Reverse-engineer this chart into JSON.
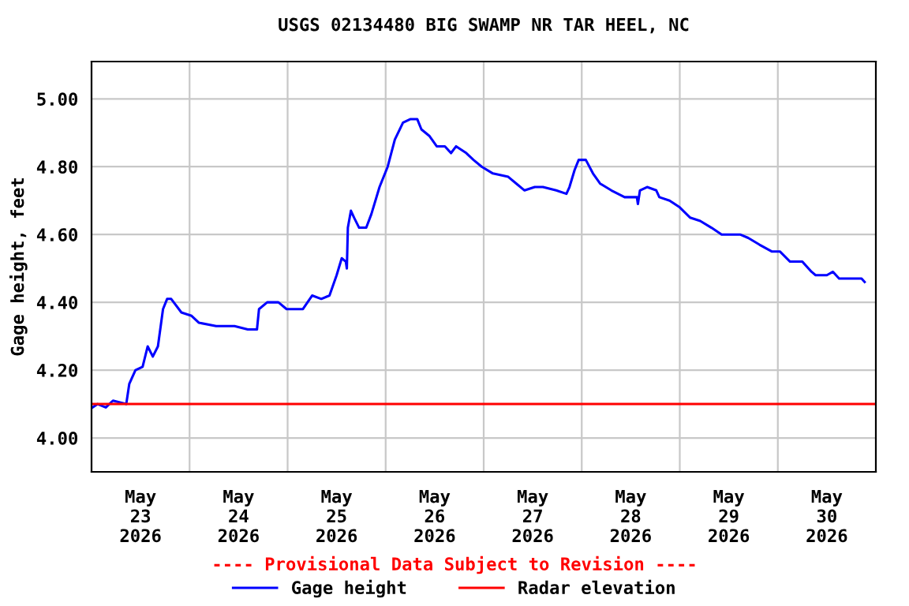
{
  "chart_data": {
    "type": "line",
    "title": "USGS 02134480 BIG SWAMP NR TAR HEEL, NC",
    "ylabel": "Gage height, feet",
    "annotations": [
      "---- Provisional Data Subject to Revision ----"
    ],
    "xlim": [
      "2026-05-23T00:00",
      "2026-05-31T00:00"
    ],
    "xticks": [
      {
        "value": "2026-05-23T12:00",
        "label": "May\n23\n2026"
      },
      {
        "value": "2026-05-24T12:00",
        "label": "May\n24\n2026"
      },
      {
        "value": "2026-05-25T12:00",
        "label": "May\n25\n2026"
      },
      {
        "value": "2026-05-26T12:00",
        "label": "May\n26\n2026"
      },
      {
        "value": "2026-05-27T12:00",
        "label": "May\n27\n2026"
      },
      {
        "value": "2026-05-28T12:00",
        "label": "May\n28\n2026"
      },
      {
        "value": "2026-05-29T12:00",
        "label": "May\n29\n2026"
      },
      {
        "value": "2026-05-30T12:00",
        "label": "May\n30\n2026"
      },
      {
        "value": "2026-05-24T00:00",
        "label": null
      },
      {
        "value": "2026-05-25T00:00",
        "label": null
      },
      {
        "value": "2026-05-26T00:00",
        "label": null
      },
      {
        "value": "2026-05-27T00:00",
        "label": null
      },
      {
        "value": "2026-05-28T00:00",
        "label": null
      },
      {
        "value": "2026-05-29T00:00",
        "label": null
      },
      {
        "value": "2026-05-30T00:00",
        "label": null
      }
    ],
    "ylim": [
      3.9,
      5.11
    ],
    "yticks": [
      {
        "value": 4.0,
        "label": "4.00"
      },
      {
        "value": 4.2,
        "label": "4.20"
      },
      {
        "value": 4.4,
        "label": "4.40"
      },
      {
        "value": 4.6,
        "label": "4.60"
      },
      {
        "value": 4.8,
        "label": "4.80"
      },
      {
        "value": 5.0,
        "label": "5.00"
      }
    ],
    "grid": true,
    "legend": "bottom",
    "marker": "none",
    "line_style": "solid",
    "series": [
      {
        "name": "Gage height",
        "color": "#0000ff",
        "x": [
          "2026-05-23T00:15",
          "2026-05-23T01:30",
          "2026-05-23T03:30",
          "2026-05-23T05:15",
          "2026-05-23T08:30",
          "2026-05-23T09:15",
          "2026-05-23T10:45",
          "2026-05-23T12:30",
          "2026-05-23T13:45",
          "2026-05-23T15:00",
          "2026-05-23T16:15",
          "2026-05-23T17:30",
          "2026-05-23T18:30",
          "2026-05-23T19:30",
          "2026-05-23T22:00",
          "2026-05-24T00:30",
          "2026-05-24T02:15",
          "2026-05-24T06:30",
          "2026-05-24T11:00",
          "2026-05-24T14:15",
          "2026-05-24T16:30",
          "2026-05-24T17:00",
          "2026-05-24T19:00",
          "2026-05-24T21:45",
          "2026-05-24T23:45",
          "2026-05-25T03:45",
          "2026-05-25T06:00",
          "2026-05-25T08:15",
          "2026-05-25T10:15",
          "2026-05-25T12:00",
          "2026-05-25T13:15",
          "2026-05-25T14:15",
          "2026-05-25T14:30",
          "2026-05-25T14:45",
          "2026-05-25T15:30",
          "2026-05-25T16:15",
          "2026-05-25T17:30",
          "2026-05-25T19:15",
          "2026-05-25T20:30",
          "2026-05-25T22:30",
          "2026-05-26T00:30",
          "2026-05-26T02:15",
          "2026-05-26T04:15",
          "2026-05-26T06:00",
          "2026-05-26T07:45",
          "2026-05-26T08:45",
          "2026-05-26T10:45",
          "2026-05-26T12:30",
          "2026-05-26T14:30",
          "2026-05-26T16:00",
          "2026-05-26T17:15",
          "2026-05-26T19:45",
          "2026-05-26T21:30",
          "2026-05-26T23:30",
          "2026-05-27T02:15",
          "2026-05-27T06:00",
          "2026-05-27T08:00",
          "2026-05-27T10:00",
          "2026-05-27T12:30",
          "2026-05-27T14:30",
          "2026-05-27T17:45",
          "2026-05-27T20:15",
          "2026-05-27T21:00",
          "2026-05-27T22:15",
          "2026-05-27T23:15",
          "2026-05-28T01:00",
          "2026-05-28T02:45",
          "2026-05-28T04:30",
          "2026-05-28T07:15",
          "2026-05-28T10:30",
          "2026-05-28T13:30",
          "2026-05-28T13:45",
          "2026-05-28T14:15",
          "2026-05-28T16:00",
          "2026-05-28T18:15",
          "2026-05-28T19:00",
          "2026-05-28T21:30",
          "2026-05-29T00:00",
          "2026-05-29T02:30",
          "2026-05-29T05:00",
          "2026-05-29T07:45",
          "2026-05-29T10:15",
          "2026-05-29T14:45",
          "2026-05-29T16:45",
          "2026-05-29T19:30",
          "2026-05-29T22:30",
          "2026-05-30T00:30",
          "2026-05-30T03:00",
          "2026-05-30T04:30",
          "2026-05-30T06:00",
          "2026-05-30T08:15",
          "2026-05-30T09:15",
          "2026-05-30T12:00",
          "2026-05-30T13:30",
          "2026-05-30T15:00",
          "2026-05-30T18:30",
          "2026-05-30T20:30",
          "2026-05-30T21:15"
        ],
        "values": [
          4.09,
          4.1,
          4.09,
          4.11,
          4.1,
          4.16,
          4.2,
          4.21,
          4.27,
          4.24,
          4.27,
          4.38,
          4.41,
          4.41,
          4.37,
          4.36,
          4.34,
          4.33,
          4.33,
          4.32,
          4.32,
          4.38,
          4.4,
          4.4,
          4.38,
          4.38,
          4.42,
          4.41,
          4.42,
          4.48,
          4.53,
          4.52,
          4.5,
          4.62,
          4.67,
          4.65,
          4.62,
          4.62,
          4.66,
          4.74,
          4.8,
          4.88,
          4.93,
          4.94,
          4.94,
          4.91,
          4.89,
          4.86,
          4.86,
          4.84,
          4.86,
          4.84,
          4.82,
          4.8,
          4.78,
          4.77,
          4.75,
          4.73,
          4.74,
          4.74,
          4.73,
          4.72,
          4.74,
          4.79,
          4.82,
          4.82,
          4.78,
          4.75,
          4.73,
          4.71,
          4.71,
          4.69,
          4.73,
          4.74,
          4.73,
          4.71,
          4.7,
          4.68,
          4.65,
          4.64,
          4.62,
          4.6,
          4.6,
          4.59,
          4.57,
          4.55,
          4.55,
          4.52,
          4.52,
          4.52,
          4.49,
          4.48,
          4.48,
          4.49,
          4.47,
          4.47,
          4.47,
          4.46
        ]
      },
      {
        "name": "Radar elevation",
        "color": "#ff0000",
        "x": [
          "2026-05-23T00:00",
          "2026-05-31T00:00"
        ],
        "values": [
          4.1,
          4.1
        ]
      }
    ]
  }
}
